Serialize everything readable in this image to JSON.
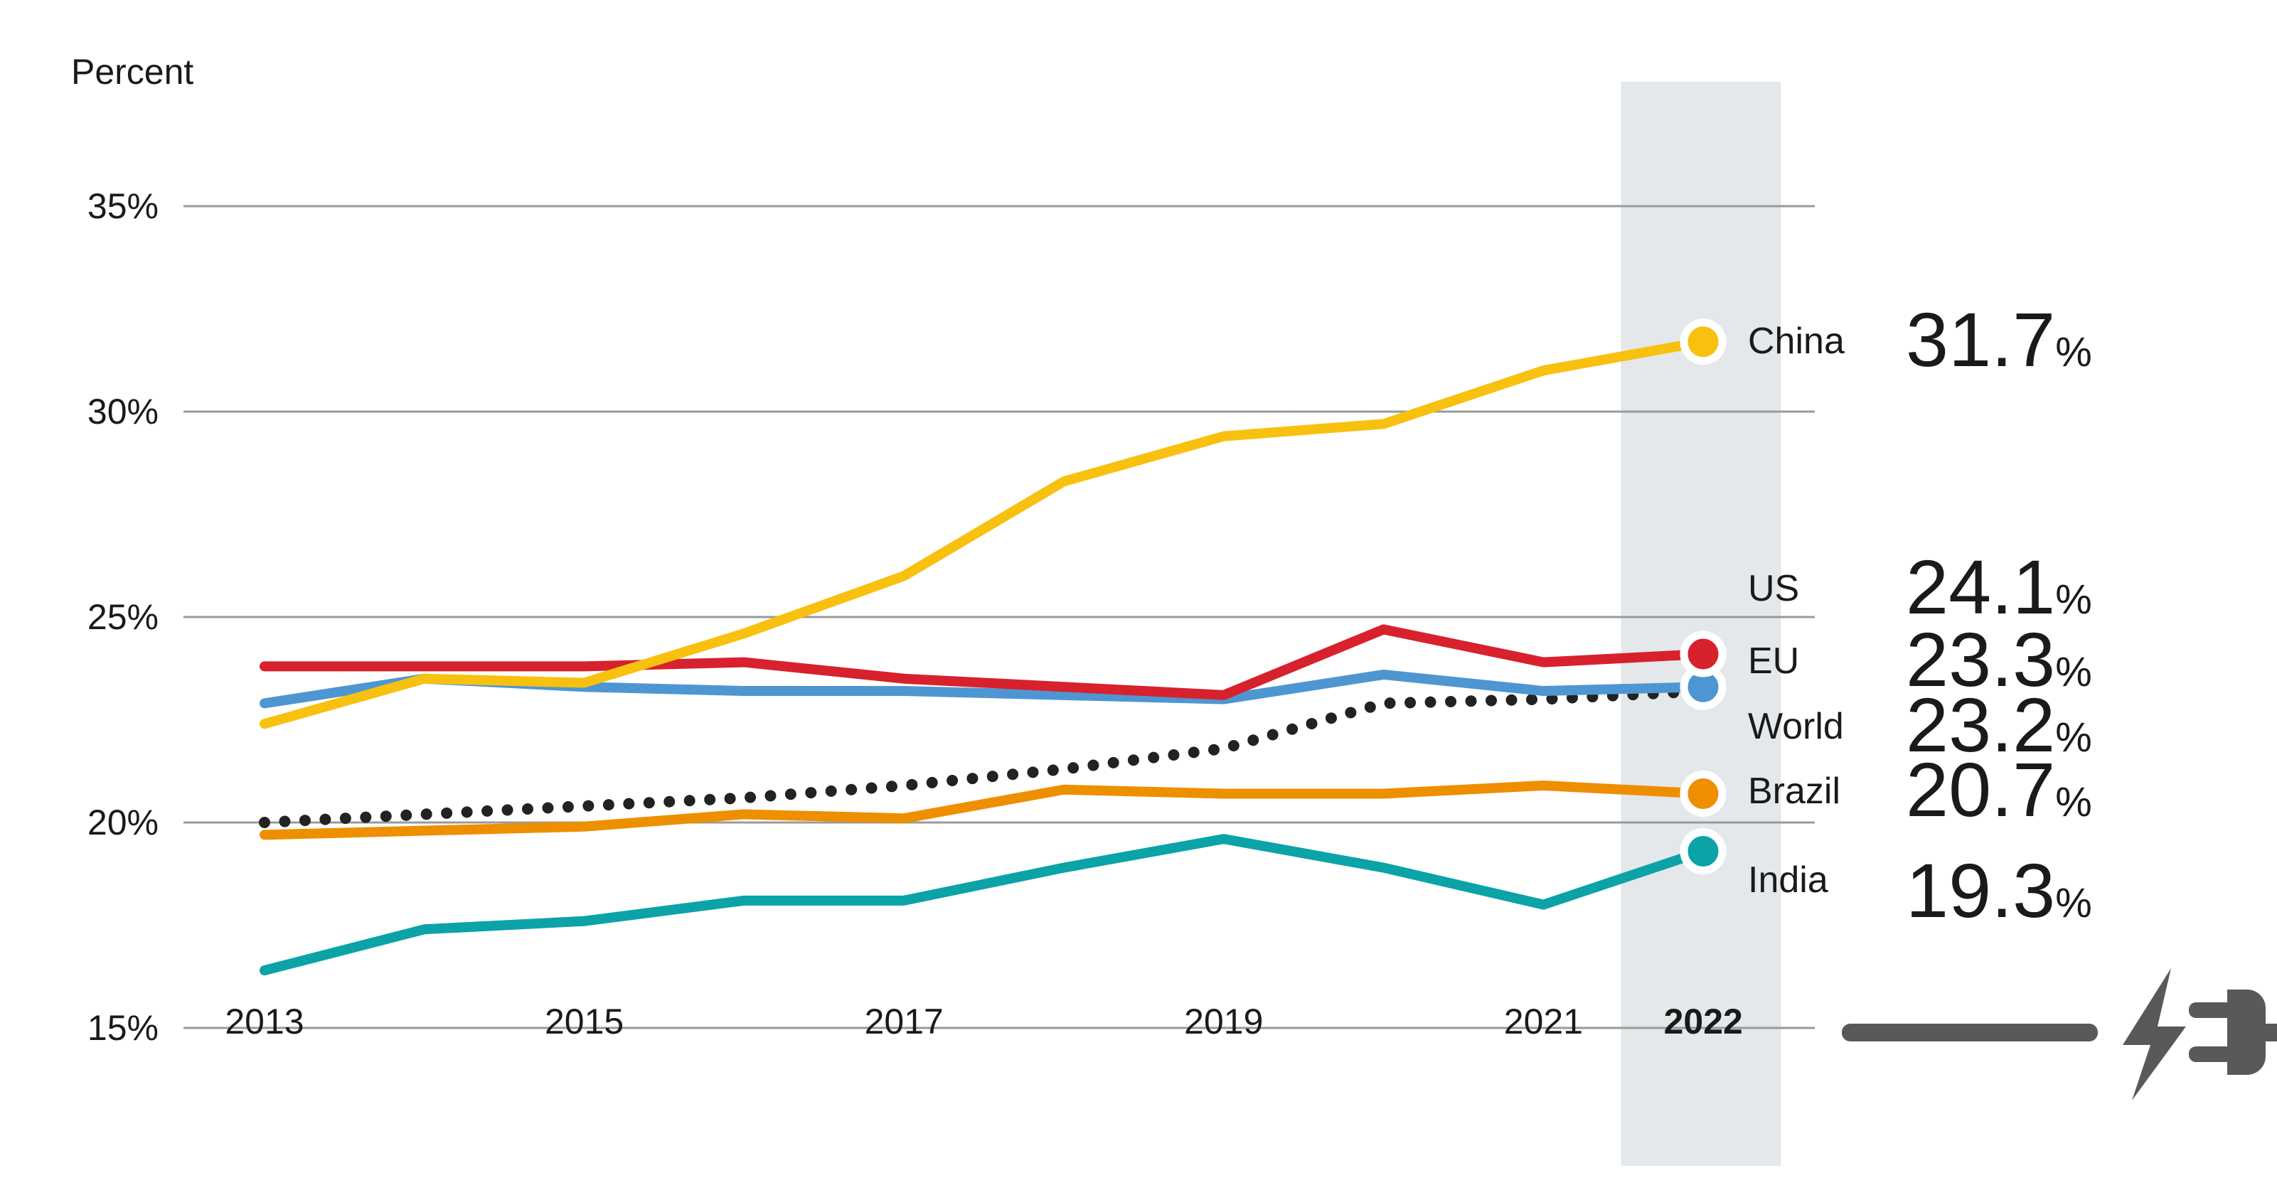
{
  "chart_data": {
    "type": "line",
    "title": "Percent",
    "ylabel": "Percent",
    "xlabel": "",
    "x": [
      2013,
      2014,
      2015,
      2016,
      2017,
      2018,
      2019,
      2020,
      2021,
      2022
    ],
    "ylim": [
      15,
      35
    ],
    "grid": "horizontal",
    "legend_position": "right",
    "highlight_year": 2022,
    "yticks": [
      {
        "value": 35,
        "label": "35%"
      },
      {
        "value": 30,
        "label": "30%"
      },
      {
        "value": 25,
        "label": "25%"
      },
      {
        "value": 20,
        "label": "20%"
      },
      {
        "value": 15,
        "label": "15%"
      }
    ],
    "xticks": [
      {
        "year": 2013,
        "label": "2013",
        "bold": false
      },
      {
        "year": 2015,
        "label": "2015",
        "bold": false
      },
      {
        "year": 2017,
        "label": "2017",
        "bold": false
      },
      {
        "year": 2019,
        "label": "2019",
        "bold": false
      },
      {
        "year": 2021,
        "label": "2021",
        "bold": false
      },
      {
        "year": 2022,
        "label": "2022",
        "bold": true
      }
    ],
    "series": [
      {
        "id": "world",
        "name": "World",
        "color": "#222222",
        "dotted": true,
        "dot": false,
        "values": [
          20.0,
          20.2,
          20.4,
          20.6,
          20.9,
          21.3,
          21.8,
          22.9,
          23.0,
          23.2
        ]
      },
      {
        "id": "india",
        "name": "India",
        "color": "#0BA3A8",
        "dotted": false,
        "dot": true,
        "values": [
          16.4,
          17.4,
          17.6,
          18.1,
          18.1,
          18.9,
          19.6,
          18.9,
          18.0,
          19.3
        ]
      },
      {
        "id": "brazil",
        "name": "Brazil",
        "color": "#EE8F00",
        "dotted": false,
        "dot": true,
        "values": [
          19.7,
          19.8,
          19.9,
          20.2,
          20.1,
          20.8,
          20.7,
          20.7,
          20.9,
          20.7
        ]
      },
      {
        "id": "eu",
        "name": "EU",
        "color": "#4E96D2",
        "dotted": false,
        "dot": true,
        "values": [
          22.9,
          23.5,
          23.3,
          23.2,
          23.2,
          23.1,
          23.0,
          23.6,
          23.2,
          23.3
        ]
      },
      {
        "id": "us",
        "name": "US",
        "color": "#D7212D",
        "dotted": false,
        "dot": true,
        "values": [
          23.8,
          23.8,
          23.8,
          23.9,
          23.5,
          23.3,
          23.1,
          24.7,
          23.9,
          24.1
        ]
      },
      {
        "id": "china",
        "name": "China",
        "color": "#F8C110",
        "dotted": false,
        "dot": true,
        "values": [
          22.4,
          23.5,
          23.4,
          24.6,
          26.0,
          28.3,
          29.4,
          29.7,
          31.0,
          31.7
        ]
      }
    ],
    "legend": [
      {
        "id": "china",
        "label": "China",
        "value": "31.7",
        "suffix": "%"
      },
      {
        "id": "us",
        "label": "US",
        "value": "24.1",
        "suffix": "%"
      },
      {
        "id": "eu",
        "label": "EU",
        "value": "23.3",
        "suffix": "%"
      },
      {
        "id": "world",
        "label": "World",
        "value": "23.2",
        "suffix": "%"
      },
      {
        "id": "brazil",
        "label": "Brazil",
        "value": "20.7",
        "suffix": "%"
      },
      {
        "id": "india",
        "label": "India",
        "value": "19.3",
        "suffix": "%"
      }
    ],
    "colors": {
      "band": "#E4E8EA",
      "grid": "#9A9A9A",
      "text": "#1A1A1A",
      "icon": "#58595B"
    }
  }
}
